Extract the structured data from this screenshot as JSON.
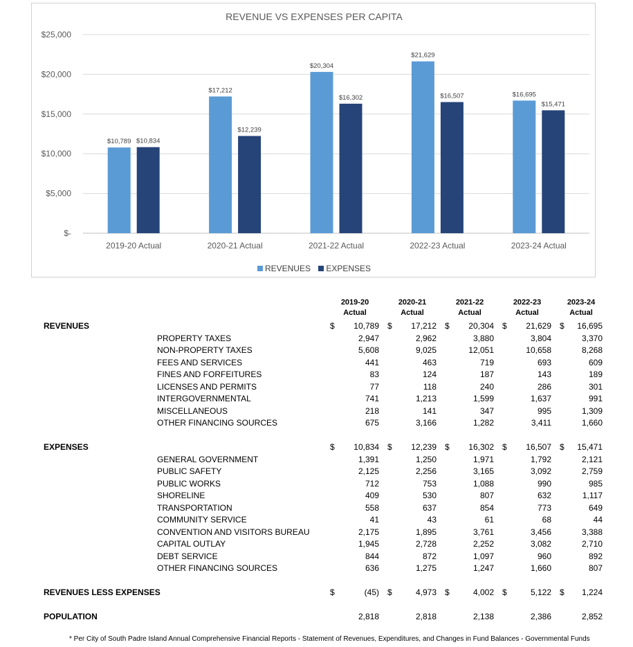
{
  "chart_data": {
    "type": "bar",
    "title": "REVENUE VS EXPENSES PER CAPITA",
    "categories": [
      "2019-20  Actual",
      "2020-21 Actual",
      "2021-22 Actual",
      "2022-23 Actual",
      "2023-24 Actual"
    ],
    "series": [
      {
        "name": "REVENUES",
        "values": [
          10789,
          17212,
          20304,
          21629,
          16695
        ],
        "labels": [
          "$10,789",
          "$17,212",
          "$20,304",
          "$21,629",
          "$16,695"
        ],
        "color": "#5b9bd5"
      },
      {
        "name": "EXPENSES",
        "values": [
          10834,
          12239,
          16302,
          16507,
          15471
        ],
        "labels": [
          "$10,834",
          "$12,239",
          "$16,302",
          "$16,507",
          "$15,471"
        ],
        "color": "#264478"
      }
    ],
    "ylim": [
      0,
      25000
    ],
    "yticks": [
      0,
      5000,
      10000,
      15000,
      20000,
      25000
    ],
    "ytick_labels": [
      "$-",
      "$5,000",
      "$10,000",
      "$15,000",
      "$20,000",
      "$25,000"
    ],
    "grid": true,
    "legend": "bottom"
  },
  "table": {
    "headers": [
      [
        "2019-20",
        "Actual"
      ],
      [
        "2020-21",
        "Actual"
      ],
      [
        "2021-22",
        "Actual"
      ],
      [
        "2022-23",
        "Actual"
      ],
      [
        "2023-24",
        "Actual"
      ]
    ],
    "revenues_title": "REVENUES",
    "revenues_totals": [
      "10,789",
      "17,212",
      "20,304",
      "21,629",
      "16,695"
    ],
    "revenue_rows": [
      {
        "label": "PROPERTY TAXES",
        "values": [
          "2,947",
          "2,962",
          "3,880",
          "3,804",
          "3,370"
        ]
      },
      {
        "label": "NON-PROPERTY TAXES",
        "values": [
          "5,608",
          "9,025",
          "12,051",
          "10,658",
          "8,268"
        ]
      },
      {
        "label": "FEES AND SERVICES",
        "values": [
          "441",
          "463",
          "719",
          "693",
          "609"
        ]
      },
      {
        "label": "FINES AND FORFEITURES",
        "values": [
          "83",
          "124",
          "187",
          "143",
          "189"
        ]
      },
      {
        "label": "LICENSES AND PERMITS",
        "values": [
          "77",
          "118",
          "240",
          "286",
          "301"
        ]
      },
      {
        "label": "INTERGOVERNMENTAL",
        "values": [
          "741",
          "1,213",
          "1,599",
          "1,637",
          "991"
        ]
      },
      {
        "label": "MISCELLANEOUS",
        "values": [
          "218",
          "141",
          "347",
          "995",
          "1,309"
        ]
      },
      {
        "label": "OTHER FINANCING SOURCES",
        "values": [
          "675",
          "3,166",
          "1,282",
          "3,411",
          "1,660"
        ]
      }
    ],
    "expenses_title": "EXPENSES",
    "expenses_totals": [
      "10,834",
      "12,239",
      "16,302",
      "16,507",
      "15,471"
    ],
    "expense_rows": [
      {
        "label": "GENERAL GOVERNMENT",
        "values": [
          "1,391",
          "1,250",
          "1,971",
          "1,792",
          "2,121"
        ]
      },
      {
        "label": "PUBLIC SAFETY",
        "values": [
          "2,125",
          "2,256",
          "3,165",
          "3,092",
          "2,759"
        ]
      },
      {
        "label": "PUBLIC WORKS",
        "values": [
          "712",
          "753",
          "1,088",
          "990",
          "985"
        ]
      },
      {
        "label": "SHORELINE",
        "values": [
          "409",
          "530",
          "807",
          "632",
          "1,117"
        ]
      },
      {
        "label": "TRANSPORTATION",
        "values": [
          "558",
          "637",
          "854",
          "773",
          "649"
        ]
      },
      {
        "label": "COMMUNITY SERVICE",
        "values": [
          "41",
          "43",
          "61",
          "68",
          "44"
        ]
      },
      {
        "label": "CONVENTION AND VISITORS BUREAU",
        "values": [
          "2,175",
          "1,895",
          "3,761",
          "3,456",
          "3,388"
        ]
      },
      {
        "label": "CAPITAL OUTLAY",
        "values": [
          "1,945",
          "2,728",
          "2,252",
          "3,082",
          "2,710"
        ]
      },
      {
        "label": "DEBT SERVICE",
        "values": [
          "844",
          "872",
          "1,097",
          "960",
          "892"
        ]
      },
      {
        "label": "OTHER FINANCING SOURCES",
        "values": [
          "636",
          "1,275",
          "1,247",
          "1,660",
          "807"
        ]
      }
    ],
    "net_title": "REVENUES LESS EXPENSES",
    "net_values": [
      "(45)",
      "4,973",
      "4,002",
      "5,122",
      "1,224"
    ],
    "population_title": "POPULATION",
    "population_values": [
      "2,818",
      "2,818",
      "2,138",
      "2,386",
      "2,852"
    ],
    "currency_symbol": "$"
  },
  "footnote": "* Per City of South Padre Island Annual Comprehensive Financial Reports - Statement of Revenues, Expenditures, and Changes in Fund Balances - Governmental Funds"
}
